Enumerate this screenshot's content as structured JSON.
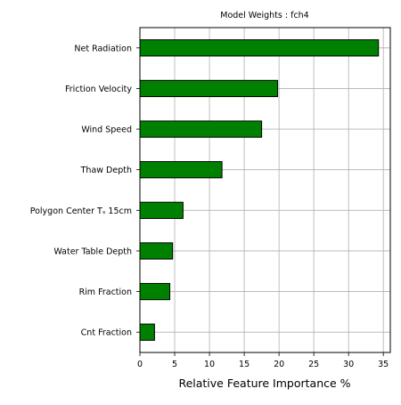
{
  "chart_data": {
    "type": "bar",
    "orientation": "horizontal",
    "title": "Model Weights : fch4",
    "xlabel": "Relative Feature Importance %",
    "ylabel": "",
    "xlim": [
      0,
      36
    ],
    "xticks": [
      0,
      5,
      10,
      15,
      20,
      25,
      30,
      35
    ],
    "grid": true,
    "categories": [
      "Net Radiation",
      "Friction Velocity",
      "Wind Speed",
      "Thaw Depth",
      "Polygon Center Tₛ 15cm",
      "Water Table Depth",
      "Rim Fraction",
      "Cnt Fraction"
    ],
    "values": [
      34.3,
      19.8,
      17.5,
      11.8,
      6.2,
      4.7,
      4.3,
      2.1
    ],
    "bar_color": "#008000",
    "edge_color": "#000000",
    "grid_color": "#b0b0b0"
  }
}
